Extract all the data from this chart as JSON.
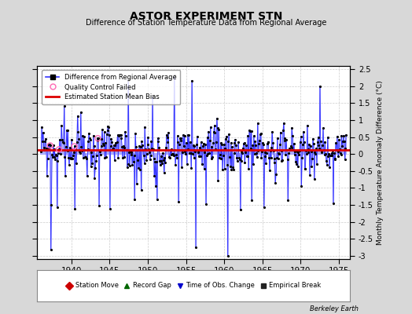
{
  "title": "ASTOR EXPERIMENT STN",
  "subtitle": "Difference of Station Temperature Data from Regional Average",
  "ylabel_right": "Monthly Temperature Anomaly Difference (°C)",
  "xlim": [
    1935.5,
    1976.5
  ],
  "ylim": [
    -3.1,
    2.6
  ],
  "yticks": [
    -3,
    -2.5,
    -2,
    -1.5,
    -1,
    -0.5,
    0,
    0.5,
    1,
    1.5,
    2,
    2.5
  ],
  "ytick_labels": [
    "-3",
    "-2.5",
    "-2",
    "-1.5",
    "-1",
    "-0.5",
    "0",
    "0.5",
    "1",
    "1.5",
    "2",
    "2.5"
  ],
  "xticks": [
    1940,
    1945,
    1950,
    1955,
    1960,
    1965,
    1970,
    1975
  ],
  "bias_value": 0.12,
  "bias_color": "#dd0000",
  "line_color": "#3333ff",
  "fill_color": "#aaaaff",
  "dot_color": "#000000",
  "qc_color": "#ff69b4",
  "background_color": "#d8d8d8",
  "plot_bg_color": "#ffffff",
  "legend1_labels": [
    "Difference from Regional Average",
    "Quality Control Failed",
    "Estimated Station Mean Bias"
  ],
  "bottom_legend_labels": [
    "Station Move",
    "Record Gap",
    "Time of Obs. Change",
    "Empirical Break"
  ],
  "bottom_legend_colors": [
    "#cc0000",
    "#006600",
    "#0000cc",
    "#222222"
  ],
  "bottom_legend_markers": [
    "D",
    "^",
    "v",
    "s"
  ],
  "watermark": "Berkeley Earth",
  "grid_color": "#cccccc"
}
